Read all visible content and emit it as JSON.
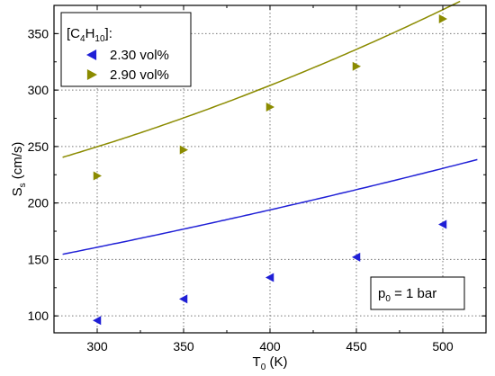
{
  "chart_data": {
    "type": "scatter",
    "xlabel": {
      "main": "T",
      "sub": "0",
      "tail": " (K)"
    },
    "ylabel": {
      "main": "S",
      "sub": "s",
      "tail": " (cm/s)"
    },
    "xlim": [
      275,
      525
    ],
    "ylim": [
      85,
      375
    ],
    "x_ticks": [
      300,
      350,
      400,
      450,
      500
    ],
    "y_ticks": [
      100,
      150,
      200,
      250,
      300,
      350
    ],
    "grid": true,
    "legend": {
      "placement": "top-left",
      "title": {
        "pre": "[C",
        "sub1": "4",
        "mid": "H",
        "sub2": "10",
        "post": "]:"
      }
    },
    "series": [
      {
        "name": "2.30 vol%",
        "marker": "triangle-left",
        "color": "#1f1fd6",
        "points": [
          {
            "x": 300,
            "y": 96
          },
          {
            "x": 350,
            "y": 115
          },
          {
            "x": 400,
            "y": 134
          },
          {
            "x": 450,
            "y": 152
          },
          {
            "x": 500,
            "y": 181
          }
        ],
        "fit": {
          "x_range": [
            280,
            520
          ],
          "coef": [
            0.000183,
            0.203,
            83.4
          ]
        }
      },
      {
        "name": "2.90 vol%",
        "marker": "triangle-right",
        "color": "#8b8b00",
        "points": [
          {
            "x": 300,
            "y": 224
          },
          {
            "x": 350,
            "y": 247
          },
          {
            "x": 400,
            "y": 285
          },
          {
            "x": 450,
            "y": 321
          },
          {
            "x": 500,
            "y": 363
          }
        ],
        "fit": {
          "x_range": [
            280,
            510
          ],
          "coef": [
            0.00064,
            0.095,
            163.7
          ]
        }
      }
    ],
    "annotation": {
      "pre": "p",
      "sub": "0",
      "post": " = 1 bar",
      "placement": "bottom-right"
    }
  }
}
